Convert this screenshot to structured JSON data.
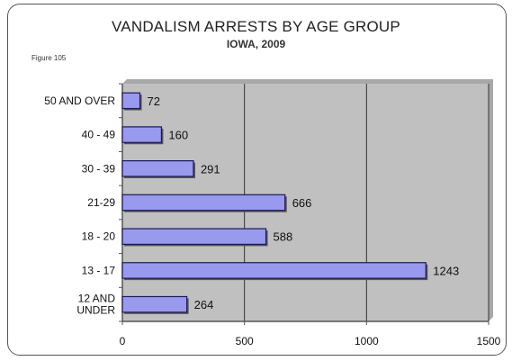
{
  "figure_label": "Figure 105",
  "chart_data": {
    "type": "bar",
    "orientation": "horizontal",
    "title": "VANDALISM ARRESTS BY AGE GROUP",
    "subtitle": "IOWA, 2009",
    "categories": [
      "50 AND OVER",
      "40 - 49",
      "30 - 39",
      "21-29",
      "18 - 20",
      "13 - 17",
      "12 AND UNDER"
    ],
    "category_label_lines": [
      [
        "50 AND OVER"
      ],
      [
        "40 - 49"
      ],
      [
        "30 - 39"
      ],
      [
        "21-29"
      ],
      [
        "18 - 20"
      ],
      [
        "13 - 17"
      ],
      [
        "12 AND",
        "UNDER"
      ]
    ],
    "values": [
      72,
      160,
      291,
      666,
      588,
      1243,
      264
    ],
    "value_labels": [
      "72",
      "160",
      "291",
      "666",
      "588",
      "1243",
      "264"
    ],
    "xlim": [
      0,
      1500
    ],
    "x_ticks": [
      0,
      500,
      1000,
      1500
    ],
    "x_tick_labels": [
      "0",
      "500",
      "1000",
      "1500"
    ],
    "grid": "vertical",
    "legend": "none",
    "colors": {
      "bar_fill": "#9999ee",
      "bar_stroke": "#1a1a5a",
      "plot_background": "#c0c0c0",
      "grid": "#333333"
    }
  }
}
